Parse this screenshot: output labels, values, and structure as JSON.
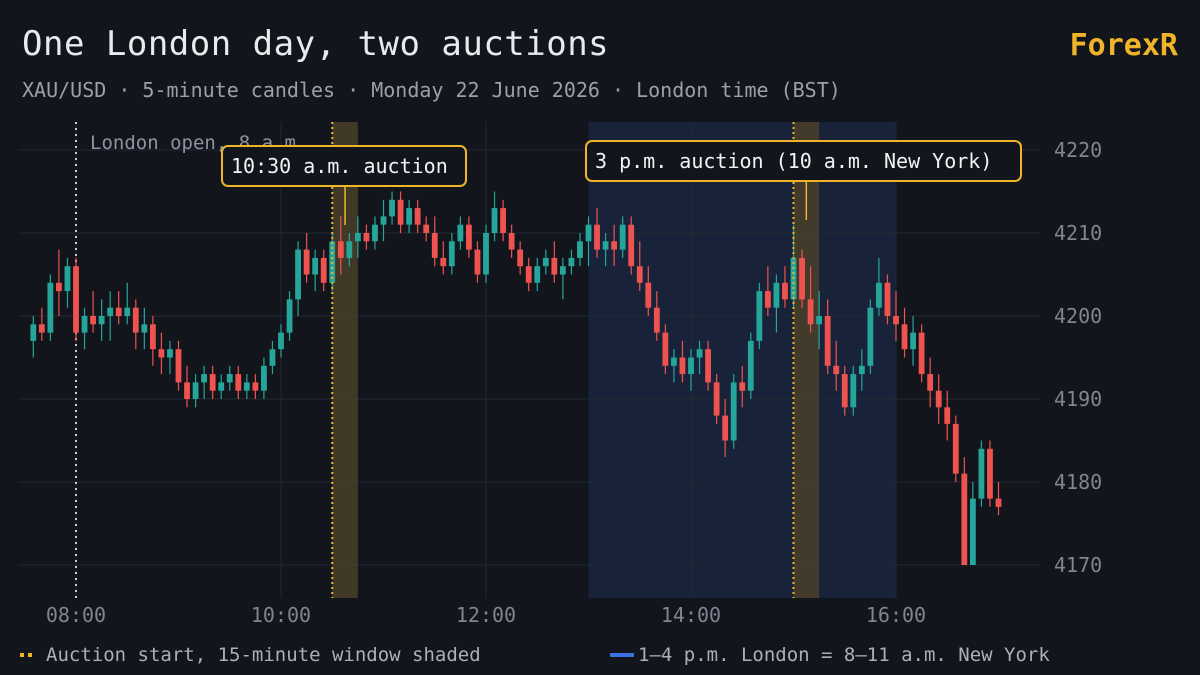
{
  "header": {
    "title": "One London day, two auctions",
    "subtitle": "XAU/USD · 5-minute candles · Monday 22 June 2026 · London time (BST)",
    "brand": "ForexR"
  },
  "legend": {
    "auction": "Auction start, 15-minute window shaded",
    "overlap": "1–4 p.m. London = 8–11 a.m. New York"
  },
  "colors": {
    "background": "#12151c",
    "up": "#26a69a",
    "down": "#ef5350",
    "auction_line": "#f0b429",
    "auction_fill": "#4a3f2a",
    "overlap_fill": "#18233a",
    "grid": "#232833",
    "axis_text": "#7f8591"
  },
  "chart_data": {
    "type": "candlestick",
    "symbol": "XAU/USD",
    "interval": "5-minute",
    "x_ticks": [
      "08:00",
      "10:00",
      "12:00",
      "14:00",
      "16:00"
    ],
    "y_ticks": [
      4170,
      4180,
      4190,
      4200,
      4210,
      4220
    ],
    "xlim": [
      "07:30",
      "17:00"
    ],
    "ylim": [
      4167,
      4222
    ],
    "annotations": {
      "london_open": {
        "time": "08:00",
        "label": "London open, 8 a.m."
      },
      "auction_1": {
        "time": "10:30",
        "window_end": "10:45",
        "label": "10:30 a.m. auction"
      },
      "auction_2": {
        "time": "15:00",
        "window_end": "15:15",
        "label": "3 p.m. auction (10 a.m. New York)"
      },
      "ny_overlap": {
        "start": "13:00",
        "end": "16:00"
      }
    },
    "candles": [
      [
        "07:35",
        4197,
        4200,
        4195,
        4199
      ],
      [
        "07:40",
        4199,
        4201,
        4197,
        4198
      ],
      [
        "07:45",
        4198,
        4205,
        4197,
        4204
      ],
      [
        "07:50",
        4204,
        4208,
        4200,
        4203
      ],
      [
        "07:55",
        4203,
        4207,
        4201,
        4206
      ],
      [
        "08:00",
        4206,
        4207,
        4197,
        4198
      ],
      [
        "08:05",
        4198,
        4201,
        4196,
        4200
      ],
      [
        "08:10",
        4200,
        4203,
        4198,
        4199
      ],
      [
        "08:15",
        4199,
        4202,
        4197,
        4200
      ],
      [
        "08:20",
        4200,
        4203,
        4197,
        4201
      ],
      [
        "08:25",
        4201,
        4203,
        4199,
        4200
      ],
      [
        "08:30",
        4200,
        4204,
        4199,
        4201
      ],
      [
        "08:35",
        4201,
        4202,
        4196,
        4198
      ],
      [
        "08:40",
        4198,
        4201,
        4196,
        4199
      ],
      [
        "08:45",
        4199,
        4200,
        4194,
        4196
      ],
      [
        "08:50",
        4196,
        4198,
        4193,
        4195
      ],
      [
        "08:55",
        4195,
        4197,
        4193,
        4196
      ],
      [
        "09:00",
        4196,
        4197,
        4191,
        4192
      ],
      [
        "09:05",
        4192,
        4194,
        4189,
        4190
      ],
      [
        "09:10",
        4190,
        4193,
        4189,
        4192
      ],
      [
        "09:15",
        4192,
        4194,
        4190,
        4193
      ],
      [
        "09:20",
        4193,
        4194,
        4190,
        4191
      ],
      [
        "09:25",
        4191,
        4193,
        4190,
        4192
      ],
      [
        "09:30",
        4192,
        4194,
        4191,
        4193
      ],
      [
        "09:35",
        4193,
        4194,
        4190,
        4191
      ],
      [
        "09:40",
        4191,
        4193,
        4190,
        4192
      ],
      [
        "09:45",
        4192,
        4193,
        4190,
        4191
      ],
      [
        "09:50",
        4191,
        4195,
        4190,
        4194
      ],
      [
        "09:55",
        4194,
        4197,
        4193,
        4196
      ],
      [
        "10:00",
        4196,
        4199,
        4195,
        4198
      ],
      [
        "10:05",
        4198,
        4203,
        4197,
        4202
      ],
      [
        "10:10",
        4202,
        4209,
        4200,
        4208
      ],
      [
        "10:15",
        4208,
        4210,
        4204,
        4205
      ],
      [
        "10:20",
        4205,
        4208,
        4203,
        4207
      ],
      [
        "10:25",
        4207,
        4208,
        4203,
        4204
      ],
      [
        "10:30",
        4204,
        4210,
        4203,
        4209
      ],
      [
        "10:35",
        4209,
        4212,
        4205,
        4207
      ],
      [
        "10:40",
        4207,
        4210,
        4206,
        4209
      ],
      [
        "10:45",
        4209,
        4212,
        4207,
        4210
      ],
      [
        "10:50",
        4210,
        4211,
        4208,
        4209
      ],
      [
        "10:55",
        4209,
        4212,
        4208,
        4211
      ],
      [
        "11:00",
        4211,
        4214,
        4209,
        4212
      ],
      [
        "11:05",
        4212,
        4215,
        4211,
        4214
      ],
      [
        "11:10",
        4214,
        4215,
        4210,
        4211
      ],
      [
        "11:15",
        4211,
        4214,
        4210,
        4213
      ],
      [
        "11:20",
        4213,
        4214,
        4210,
        4211
      ],
      [
        "11:25",
        4211,
        4212,
        4209,
        4210
      ],
      [
        "11:30",
        4210,
        4212,
        4206,
        4207
      ],
      [
        "11:35",
        4207,
        4209,
        4205,
        4206
      ],
      [
        "11:40",
        4206,
        4210,
        4205,
        4209
      ],
      [
        "11:45",
        4209,
        4212,
        4208,
        4211
      ],
      [
        "11:50",
        4211,
        4212,
        4207,
        4208
      ],
      [
        "11:55",
        4208,
        4209,
        4204,
        4205
      ],
      [
        "12:00",
        4205,
        4211,
        4204,
        4210
      ],
      [
        "12:05",
        4210,
        4215,
        4209,
        4213
      ],
      [
        "12:10",
        4213,
        4214,
        4209,
        4210
      ],
      [
        "12:15",
        4210,
        4211,
        4207,
        4208
      ],
      [
        "12:20",
        4208,
        4209,
        4205,
        4206
      ],
      [
        "12:25",
        4206,
        4207,
        4203,
        4204
      ],
      [
        "12:30",
        4204,
        4207,
        4203,
        4206
      ],
      [
        "12:35",
        4206,
        4208,
        4205,
        4207
      ],
      [
        "12:40",
        4207,
        4209,
        4204,
        4205
      ],
      [
        "12:45",
        4205,
        4207,
        4202,
        4206
      ],
      [
        "12:50",
        4206,
        4208,
        4205,
        4207
      ],
      [
        "12:55",
        4207,
        4210,
        4206,
        4209
      ],
      [
        "13:00",
        4209,
        4212,
        4206,
        4211
      ],
      [
        "13:05",
        4211,
        4213,
        4207,
        4208
      ],
      [
        "13:10",
        4208,
        4210,
        4206,
        4209
      ],
      [
        "13:15",
        4209,
        4211,
        4206,
        4208
      ],
      [
        "13:20",
        4208,
        4212,
        4207,
        4211
      ],
      [
        "13:25",
        4211,
        4212,
        4205,
        4206
      ],
      [
        "13:30",
        4206,
        4209,
        4203,
        4204
      ],
      [
        "13:35",
        4204,
        4206,
        4200,
        4201
      ],
      [
        "13:40",
        4201,
        4203,
        4197,
        4198
      ],
      [
        "13:45",
        4198,
        4199,
        4193,
        4194
      ],
      [
        "13:50",
        4194,
        4196,
        4192,
        4195
      ],
      [
        "13:55",
        4195,
        4197,
        4192,
        4193
      ],
      [
        "14:00",
        4193,
        4196,
        4191,
        4195
      ],
      [
        "14:05",
        4195,
        4197,
        4193,
        4196
      ],
      [
        "14:10",
        4196,
        4197,
        4191,
        4192
      ],
      [
        "14:15",
        4192,
        4193,
        4187,
        4188
      ],
      [
        "14:20",
        4188,
        4190,
        4183,
        4185
      ],
      [
        "14:25",
        4185,
        4193,
        4184,
        4192
      ],
      [
        "14:30",
        4192,
        4194,
        4189,
        4191
      ],
      [
        "14:35",
        4191,
        4198,
        4190,
        4197
      ],
      [
        "14:40",
        4197,
        4204,
        4196,
        4203
      ],
      [
        "14:45",
        4203,
        4206,
        4200,
        4201
      ],
      [
        "14:50",
        4201,
        4205,
        4198,
        4204
      ],
      [
        "14:55",
        4204,
        4206,
        4201,
        4202
      ],
      [
        "15:00",
        4202,
        4211,
        4201,
        4207
      ],
      [
        "15:05",
        4207,
        4208,
        4201,
        4202
      ],
      [
        "15:10",
        4202,
        4206,
        4198,
        4199
      ],
      [
        "15:15",
        4199,
        4203,
        4196,
        4200
      ],
      [
        "15:20",
        4200,
        4202,
        4193,
        4194
      ],
      [
        "15:25",
        4194,
        4197,
        4191,
        4193
      ],
      [
        "15:30",
        4193,
        4194,
        4188,
        4189
      ],
      [
        "15:35",
        4189,
        4194,
        4188,
        4193
      ],
      [
        "15:40",
        4193,
        4196,
        4191,
        4194
      ],
      [
        "15:45",
        4194,
        4202,
        4193,
        4201
      ],
      [
        "15:50",
        4201,
        4207,
        4200,
        4204
      ],
      [
        "15:55",
        4204,
        4205,
        4199,
        4200
      ],
      [
        "16:00",
        4200,
        4203,
        4197,
        4199
      ],
      [
        "16:05",
        4199,
        4201,
        4195,
        4196
      ],
      [
        "16:10",
        4196,
        4200,
        4194,
        4198
      ],
      [
        "16:15",
        4198,
        4199,
        4192,
        4193
      ],
      [
        "16:20",
        4193,
        4195,
        4189,
        4191
      ],
      [
        "16:25",
        4191,
        4193,
        4187,
        4189
      ],
      [
        "16:30",
        4189,
        4191,
        4185,
        4187
      ],
      [
        "16:35",
        4187,
        4188,
        4180,
        4181
      ],
      [
        "16:40",
        4181,
        4183,
        4170,
        4170
      ],
      [
        "16:45",
        4170,
        4180,
        4170,
        4178
      ],
      [
        "16:50",
        4178,
        4185,
        4177,
        4184
      ],
      [
        "16:55",
        4184,
        4185,
        4177,
        4178
      ],
      [
        "17:00",
        4178,
        4180,
        4176,
        4177
      ]
    ]
  }
}
